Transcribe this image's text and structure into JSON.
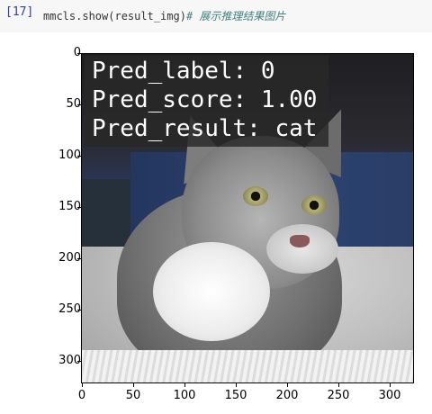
{
  "cell": {
    "prompt": "[17]",
    "code": "mmcls.show(result_img)",
    "comment": "# 展示推理结果图片"
  },
  "image": {
    "subject": "cat",
    "overlay_lines": [
      "Pred_label: 0",
      "Pred_score: 1.00",
      "Pred_result: cat"
    ]
  },
  "axes": {
    "yticks": [
      "0",
      "50",
      "100",
      "150",
      "200",
      "250",
      "300"
    ],
    "xticks": [
      "0",
      "50",
      "100",
      "150",
      "200",
      "250",
      "300"
    ]
  }
}
